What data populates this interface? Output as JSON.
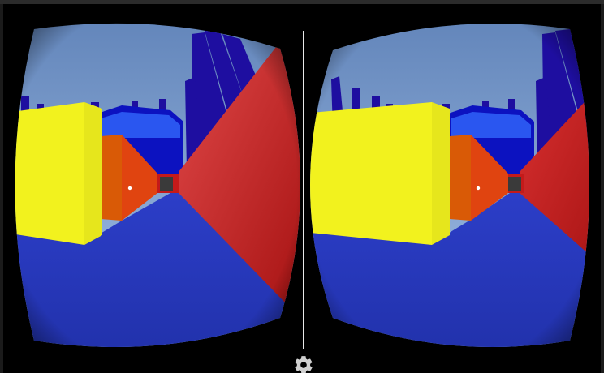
{
  "app": {
    "mode": "stereo-vr",
    "lenses": [
      "left-eye",
      "right-eye"
    ]
  },
  "icons": {
    "settings": "gear-icon"
  },
  "colors": {
    "sky_top": "#5f82b8",
    "sky_bottom": "#a9c6ea",
    "floor": "#2433b8",
    "red_wall": "#c42020",
    "orange_wall": "#e04410",
    "yellow_box": "#f2f21e",
    "pillar": "#1e0ea0",
    "gear": "#d0d0d0"
  }
}
